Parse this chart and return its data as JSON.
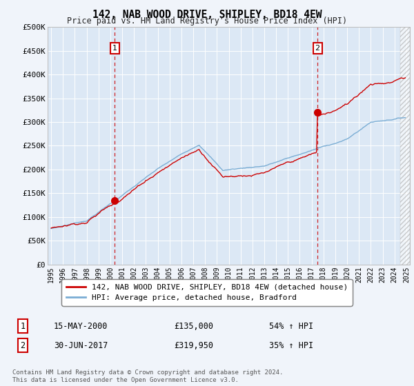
{
  "title": "142, NAB WOOD DRIVE, SHIPLEY, BD18 4EW",
  "subtitle": "Price paid vs. HM Land Registry's House Price Index (HPI)",
  "ylim": [
    0,
    500000
  ],
  "yticks": [
    0,
    50000,
    100000,
    150000,
    200000,
    250000,
    300000,
    350000,
    400000,
    450000,
    500000
  ],
  "ytick_labels": [
    "£0",
    "£50K",
    "£100K",
    "£150K",
    "£200K",
    "£250K",
    "£300K",
    "£350K",
    "£400K",
    "£450K",
    "£500K"
  ],
  "xmin": 1994.7,
  "xmax": 2025.3,
  "bg_color": "#f0f4fa",
  "plot_bg_color": "#dce8f5",
  "red_color": "#cc0000",
  "blue_color": "#7aadd4",
  "sale1_x": 2000.37,
  "sale1_y": 135000,
  "sale1_label": "1",
  "sale1_date": "15-MAY-2000",
  "sale1_price": "£135,000",
  "sale1_hpi": "54% ↑ HPI",
  "sale2_x": 2017.5,
  "sale2_y": 319950,
  "sale2_label": "2",
  "sale2_date": "30-JUN-2017",
  "sale2_price": "£319,950",
  "sale2_hpi": "35% ↑ HPI",
  "legend_line1": "142, NAB WOOD DRIVE, SHIPLEY, BD18 4EW (detached house)",
  "legend_line2": "HPI: Average price, detached house, Bradford",
  "footnote": "Contains HM Land Registry data © Crown copyright and database right 2024.\nThis data is licensed under the Open Government Licence v3.0.",
  "hatch_start": 2024.5
}
